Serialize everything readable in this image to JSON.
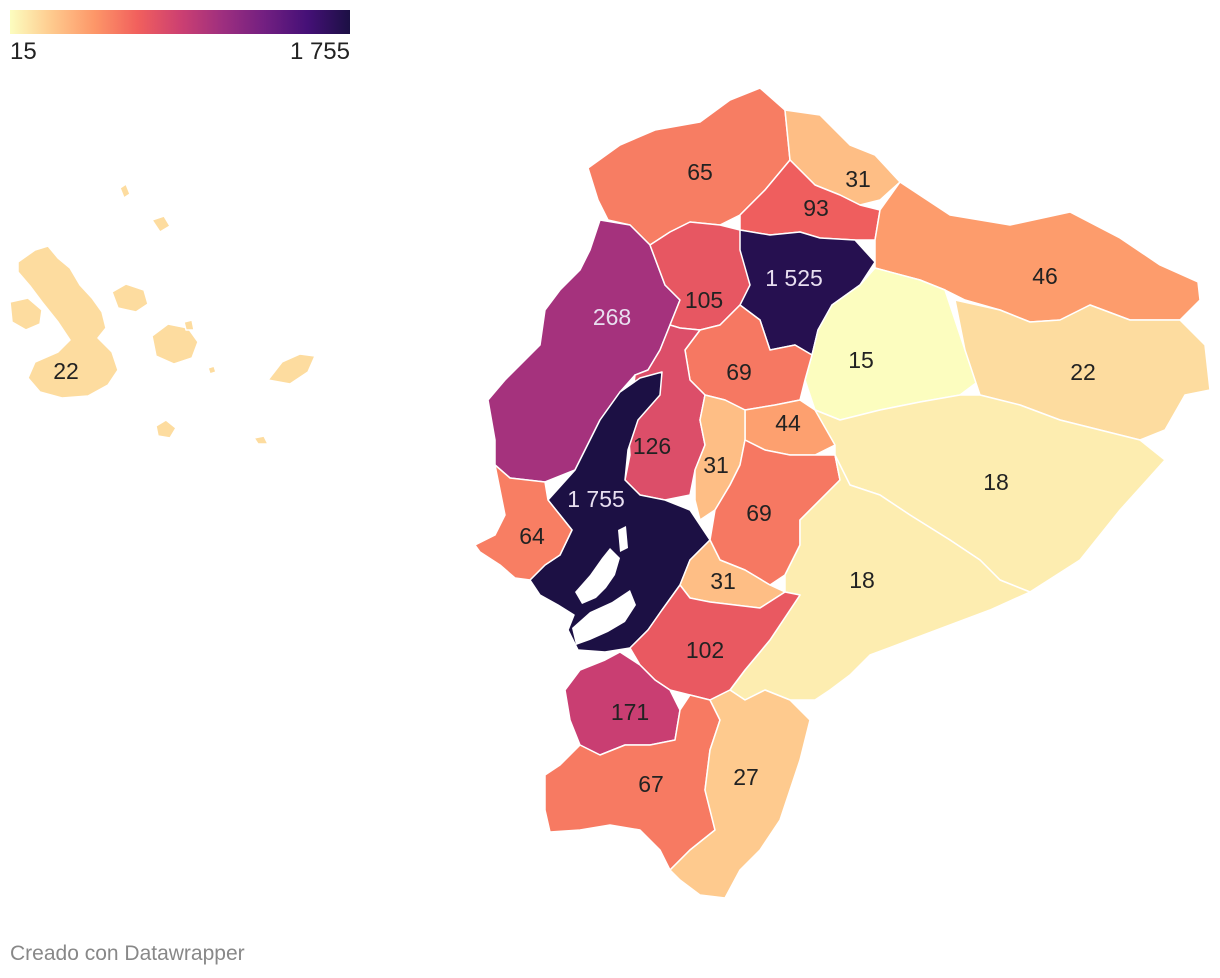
{
  "legend": {
    "min_label": "15",
    "max_label": "1 755",
    "min_value": 15,
    "max_value": 1755,
    "colors": [
      "#fcfdbf",
      "#fec98d",
      "#fd9668",
      "#f1605d",
      "#cd4071",
      "#9e2f7f",
      "#721f81",
      "#451077",
      "#1c1044"
    ]
  },
  "map": {
    "regions": [
      {
        "id": "galapagos",
        "value": 22,
        "label": "22"
      },
      {
        "id": "esmeraldas",
        "value": 65,
        "label": "65"
      },
      {
        "id": "carchi",
        "value": 31,
        "label": "31"
      },
      {
        "id": "imbabura",
        "value": 93,
        "label": "93"
      },
      {
        "id": "pichincha",
        "value": 1525,
        "label": "1 525"
      },
      {
        "id": "sucumbios",
        "value": 46,
        "label": "46"
      },
      {
        "id": "manabi",
        "value": 268,
        "label": "268"
      },
      {
        "id": "santo-domingo",
        "value": 105,
        "label": "105"
      },
      {
        "id": "napo",
        "value": 15,
        "label": "15"
      },
      {
        "id": "orellana",
        "value": 22,
        "label": "22"
      },
      {
        "id": "cotopaxi",
        "value": 69,
        "label": "69"
      },
      {
        "id": "tungurahua",
        "value": 44,
        "label": "44"
      },
      {
        "id": "los-rios",
        "value": 126,
        "label": "126"
      },
      {
        "id": "bolivar",
        "value": 31,
        "label": "31"
      },
      {
        "id": "pastaza",
        "value": 18,
        "label": "18"
      },
      {
        "id": "guayas",
        "value": 1755,
        "label": "1 755"
      },
      {
        "id": "chimborazo",
        "value": 69,
        "label": "69"
      },
      {
        "id": "santa-elena",
        "value": 64,
        "label": "64"
      },
      {
        "id": "canar",
        "value": 31,
        "label": "31"
      },
      {
        "id": "morona-santiago",
        "value": 18,
        "label": "18"
      },
      {
        "id": "azuay",
        "value": 102,
        "label": "102"
      },
      {
        "id": "el-oro",
        "value": 171,
        "label": "171"
      },
      {
        "id": "loja",
        "value": 67,
        "label": "67"
      },
      {
        "id": "zamora-chinchipe",
        "value": 27,
        "label": "27"
      }
    ]
  },
  "footer": {
    "credit": "Creado con Datawrapper"
  }
}
